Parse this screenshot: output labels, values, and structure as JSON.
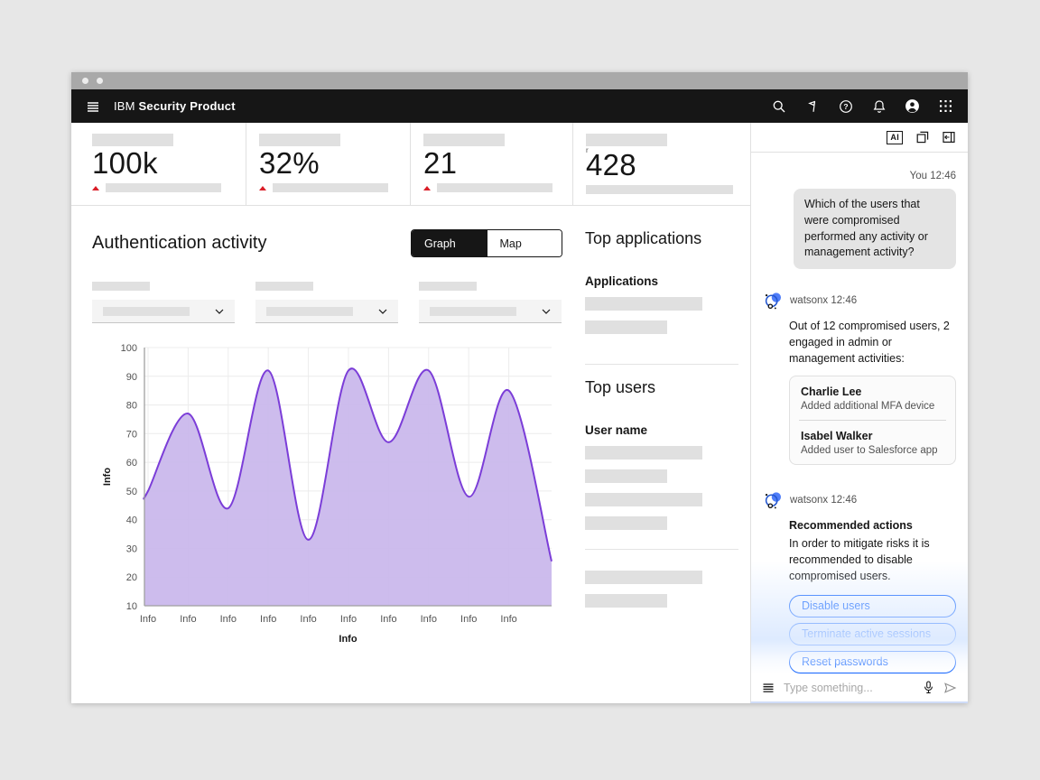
{
  "window": {
    "controls": [
      "window-dot",
      "window-dot"
    ]
  },
  "appbar": {
    "brand_prefix": "IBM",
    "brand_name": "Security Product",
    "icons": [
      "menu-icon",
      "search-icon",
      "signpost-icon",
      "help-icon",
      "notifications-icon",
      "avatar-icon",
      "app-switcher-icon"
    ]
  },
  "kpis": [
    {
      "value": "100k",
      "trend": "up"
    },
    {
      "value": "32%",
      "trend": "up"
    },
    {
      "value": "21",
      "trend": "up"
    },
    {
      "value": "428",
      "trend": "none",
      "superscript": "r"
    }
  ],
  "auth_section": {
    "title": "Authentication activity",
    "toggle": {
      "options": [
        "Graph",
        "Map"
      ],
      "selected": "Graph"
    },
    "filter_count": 3
  },
  "top_applications": {
    "title": "Top applications",
    "column_header": "Applications"
  },
  "top_users": {
    "title": "Top users",
    "column_header": "User name"
  },
  "chart_data": {
    "type": "area",
    "title": "",
    "xlabel": "Info",
    "ylabel": "Info",
    "x_tick_labels": [
      "Info",
      "Info",
      "Info",
      "Info",
      "Info",
      "Info",
      "Info",
      "Info",
      "Info",
      "Info"
    ],
    "y_ticks": [
      10,
      20,
      30,
      40,
      50,
      60,
      70,
      80,
      90,
      100
    ],
    "ylim": [
      10,
      100
    ],
    "values_at_ticks": [
      50,
      77,
      44,
      92,
      33,
      92,
      67,
      92,
      48,
      85
    ],
    "edge_start": 48,
    "edge_end": 25.5,
    "grid": true,
    "legend": "none",
    "line_color": "#7b3dd8",
    "fill_color": "#c9b6ec",
    "axis_color": "#a0a0a0",
    "grid_color": "#ececec",
    "tick_color": "#525252"
  },
  "chat": {
    "header_icons": [
      "ai-label",
      "new-window-icon",
      "side-panel-icon"
    ],
    "ai_label": "AI",
    "messages": [
      {
        "role": "user",
        "meta": "You 12:46",
        "text": "Which of the users that were compromised performed any activity or management activity?"
      },
      {
        "role": "assistant",
        "sender": "watsonx",
        "meta": "watsonx 12:46",
        "text": "Out of 12 compromised users, 2 engaged in admin or management activities:",
        "card": [
          {
            "name": "Charlie Lee",
            "desc": "Added additional MFA device"
          },
          {
            "name": "Isabel Walker",
            "desc": "Added user to Salesforce app"
          }
        ]
      },
      {
        "role": "assistant",
        "sender": "watsonx",
        "meta": "watsonx 12:46",
        "title": "Recommended actions",
        "text": "In order to mitigate risks it is recommended to disable compromised users.",
        "actions": [
          "Disable users",
          "Terminate active sessions",
          "Reset passwords"
        ],
        "feedback_icons": [
          "thumbs-up-icon",
          "thumbs-down-icon",
          "regenerate-icon"
        ]
      }
    ],
    "input": {
      "placeholder": "Type something...",
      "icons": [
        "prompt-menu-icon",
        "microphone-icon",
        "send-icon"
      ]
    }
  },
  "colors": {
    "accent_blue": "#0f62fe",
    "header_bg": "#161616",
    "trend_red": "#da1e28",
    "skeleton": "#e0e0e0",
    "chart_line": "#7b3dd8",
    "chart_fill": "#c9b6ec"
  }
}
